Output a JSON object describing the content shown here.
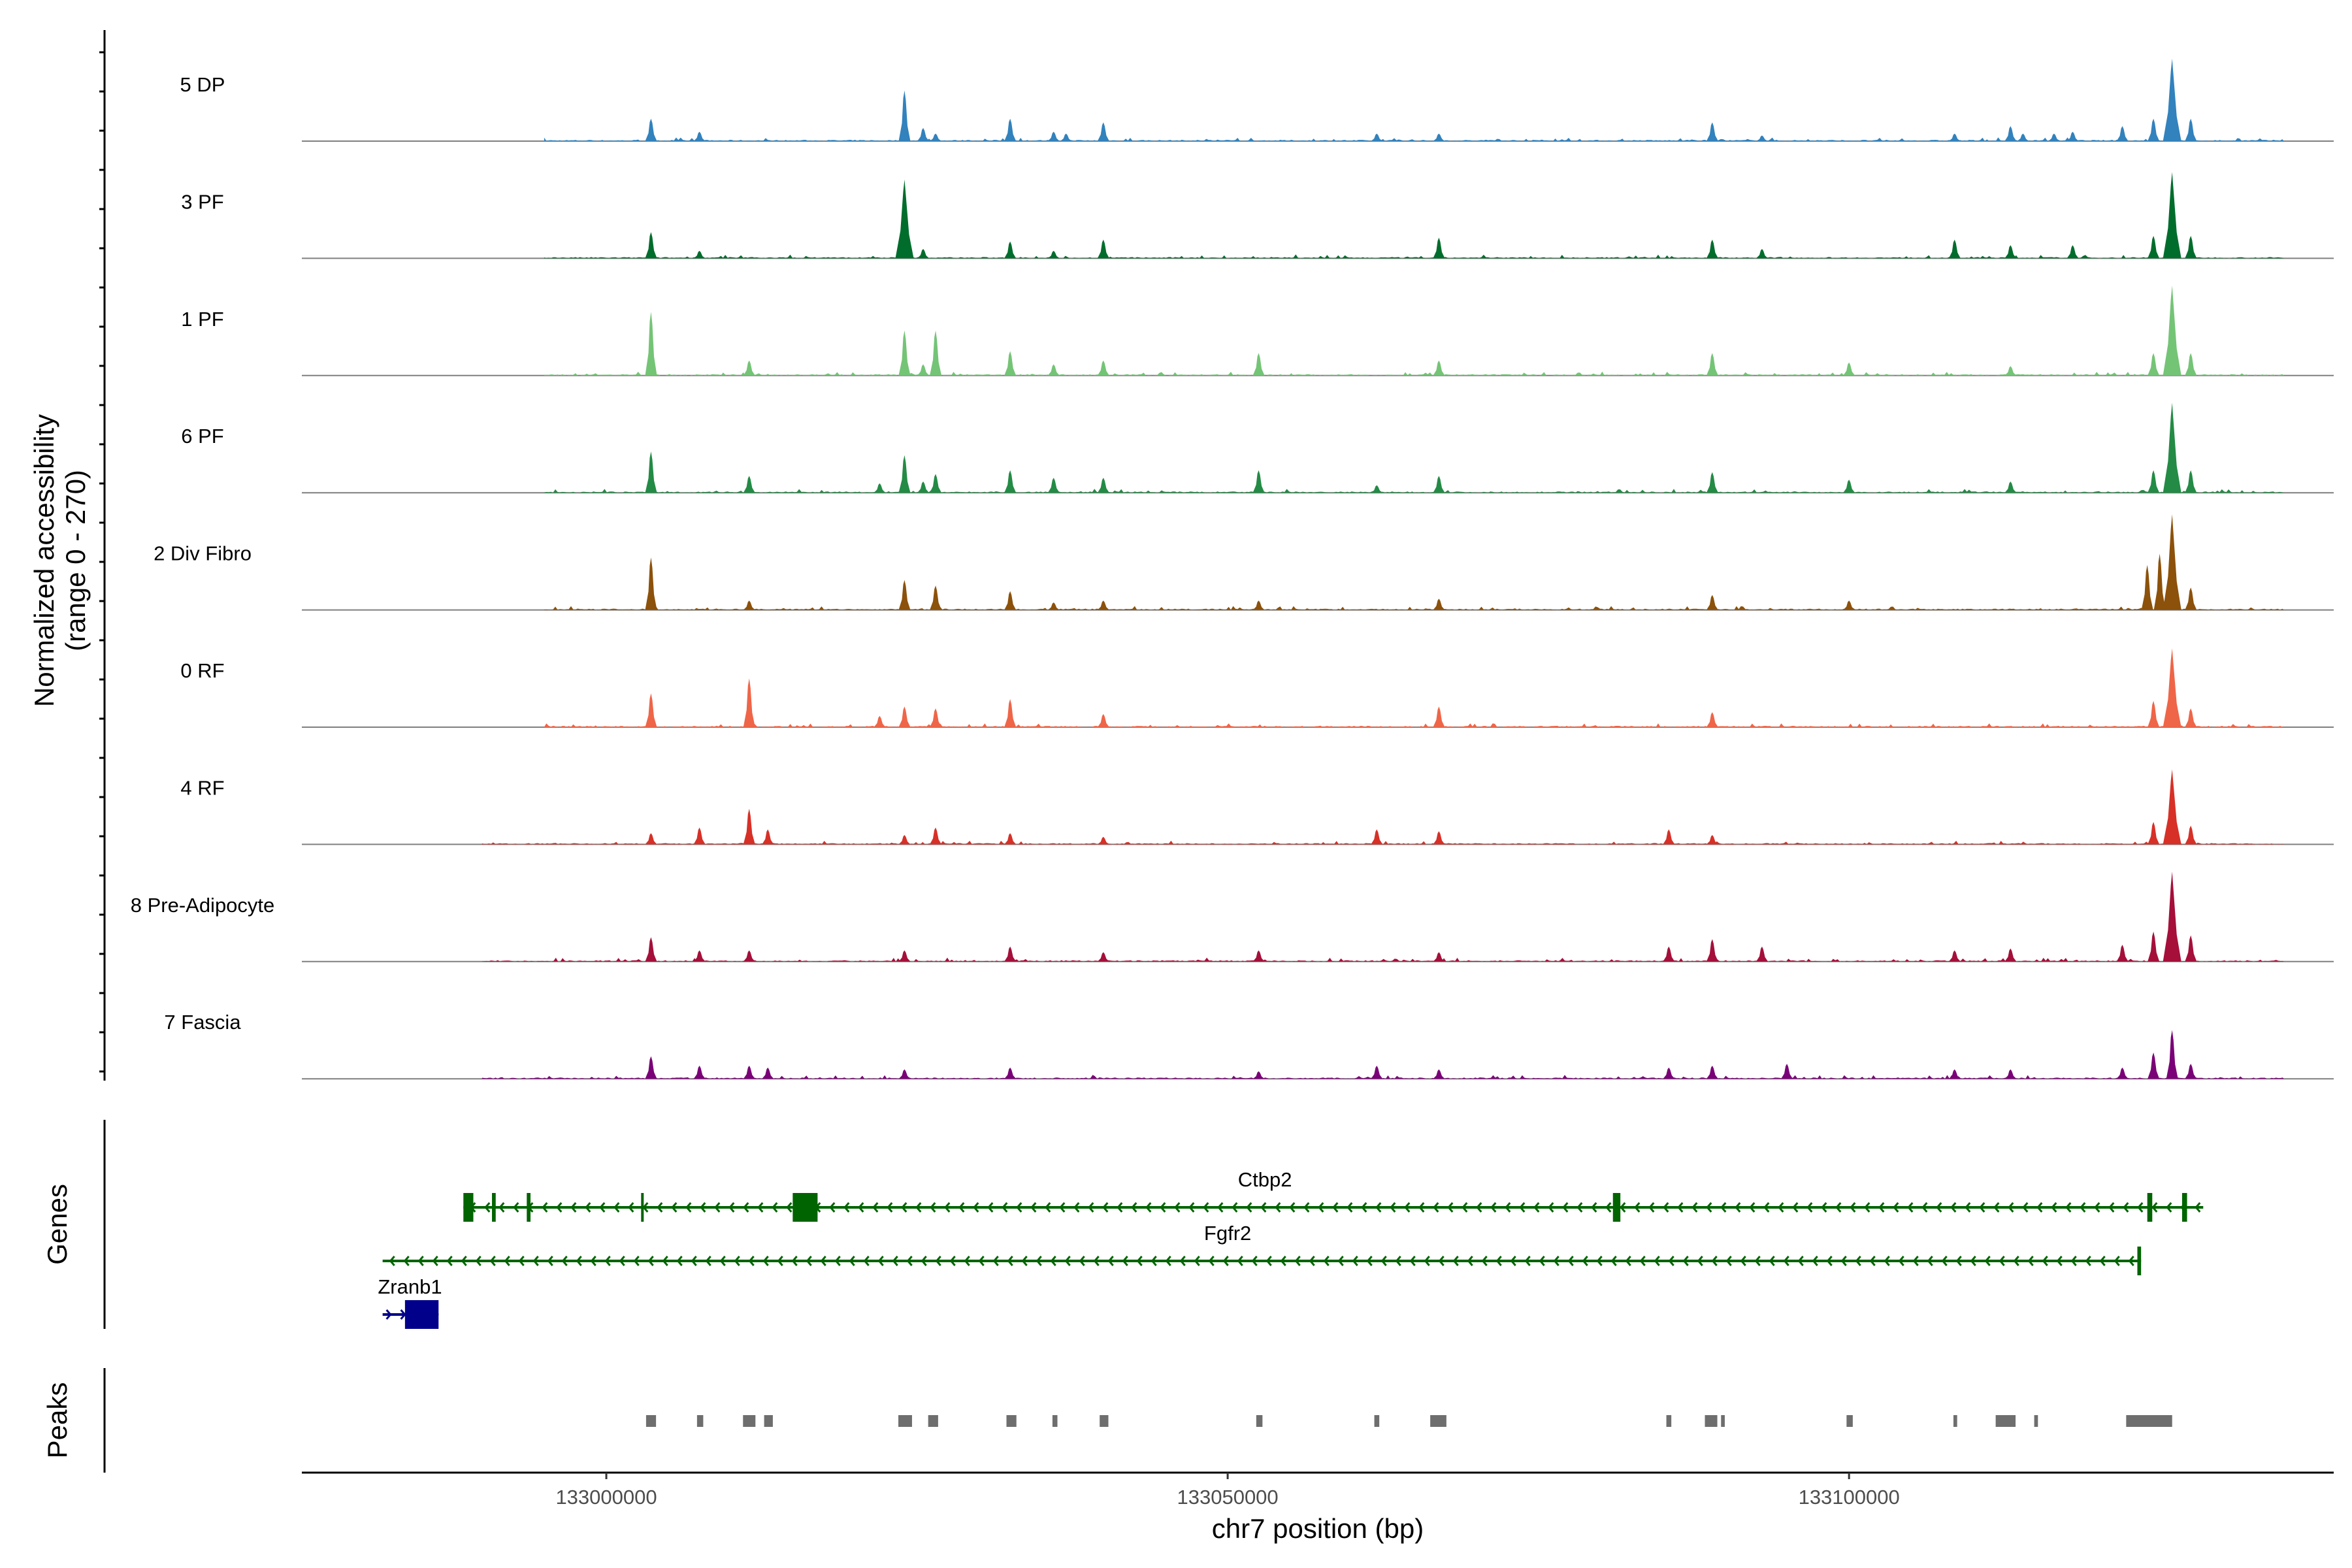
{
  "chart_data": {
    "type": "coverage",
    "y_axis_title_line1": "Normalized accessibility",
    "y_axis_title_line2": "(range 0 - 270)",
    "y_range": [
      0,
      270
    ],
    "x_axis_title": "chr7 position (bp)",
    "x_range": [
      132975500,
      133139000
    ],
    "x_ticks": [
      133000000,
      133050000,
      133100000
    ],
    "x_tick_labels": [
      "133000000",
      "133050000",
      "133100000"
    ],
    "tracks": [
      {
        "name": "5 DP",
        "color": "#3182bd",
        "peaks": [
          [
            133003600,
            60
          ],
          [
            133007500,
            25
          ],
          [
            133024000,
            135
          ],
          [
            133025500,
            35
          ],
          [
            133026500,
            20
          ],
          [
            133032500,
            60
          ],
          [
            133036000,
            25
          ],
          [
            133037000,
            20
          ],
          [
            133040000,
            50
          ],
          [
            133062000,
            20
          ],
          [
            133067000,
            20
          ],
          [
            133089000,
            50
          ],
          [
            133093000,
            15
          ],
          [
            133108500,
            20
          ],
          [
            133113000,
            40
          ],
          [
            133114000,
            20
          ],
          [
            133116500,
            20
          ],
          [
            133118000,
            25
          ],
          [
            133122000,
            40
          ],
          [
            133124500,
            60
          ],
          [
            133126000,
            220
          ],
          [
            133127500,
            60
          ]
        ]
      },
      {
        "name": "3 PF",
        "color": "#006d2c",
        "peaks": [
          [
            133003600,
            70
          ],
          [
            133007500,
            20
          ],
          [
            133024000,
            210
          ],
          [
            133025500,
            25
          ],
          [
            133032500,
            45
          ],
          [
            133036000,
            20
          ],
          [
            133040000,
            50
          ],
          [
            133067000,
            55
          ],
          [
            133089000,
            50
          ],
          [
            133093000,
            25
          ],
          [
            133108500,
            50
          ],
          [
            133113000,
            35
          ],
          [
            133118000,
            35
          ],
          [
            133124500,
            60
          ],
          [
            133126000,
            230
          ],
          [
            133127500,
            60
          ]
        ]
      },
      {
        "name": "1 PF",
        "color": "#74c476",
        "peaks": [
          [
            133003600,
            170
          ],
          [
            133011500,
            40
          ],
          [
            133024000,
            120
          ],
          [
            133025500,
            30
          ],
          [
            133026500,
            120
          ],
          [
            133032500,
            65
          ],
          [
            133036000,
            30
          ],
          [
            133040000,
            40
          ],
          [
            133052500,
            60
          ],
          [
            133067000,
            40
          ],
          [
            133089000,
            60
          ],
          [
            133100000,
            35
          ],
          [
            133113000,
            25
          ],
          [
            133124500,
            60
          ],
          [
            133126000,
            240
          ],
          [
            133127500,
            60
          ]
        ]
      },
      {
        "name": "6 PF",
        "color": "#238b45",
        "peaks": [
          [
            133003600,
            110
          ],
          [
            133011500,
            45
          ],
          [
            133022000,
            25
          ],
          [
            133024000,
            100
          ],
          [
            133025500,
            30
          ],
          [
            133026500,
            50
          ],
          [
            133032500,
            60
          ],
          [
            133036000,
            40
          ],
          [
            133040000,
            40
          ],
          [
            133052500,
            60
          ],
          [
            133062000,
            20
          ],
          [
            133067000,
            45
          ],
          [
            133089000,
            55
          ],
          [
            133100000,
            35
          ],
          [
            133113000,
            30
          ],
          [
            133124500,
            60
          ],
          [
            133126000,
            240
          ],
          [
            133127500,
            60
          ]
        ]
      },
      {
        "name": "2 Div Fibro",
        "color": "#8c510a",
        "peaks": [
          [
            133003600,
            140
          ],
          [
            133011500,
            25
          ],
          [
            133024000,
            80
          ],
          [
            133026500,
            65
          ],
          [
            133032500,
            50
          ],
          [
            133036000,
            20
          ],
          [
            133040000,
            25
          ],
          [
            133052500,
            25
          ],
          [
            133067000,
            30
          ],
          [
            133089000,
            40
          ],
          [
            133100000,
            25
          ],
          [
            133124000,
            120
          ],
          [
            133125000,
            150
          ],
          [
            133126000,
            255
          ],
          [
            133127500,
            60
          ]
        ]
      },
      {
        "name": "0 RF",
        "color": "#ef6548",
        "peaks": [
          [
            133003600,
            90
          ],
          [
            133011500,
            130
          ],
          [
            133022000,
            30
          ],
          [
            133024000,
            55
          ],
          [
            133026500,
            50
          ],
          [
            133032500,
            75
          ],
          [
            133040000,
            35
          ],
          [
            133067000,
            55
          ],
          [
            133089000,
            40
          ],
          [
            133124500,
            70
          ],
          [
            133126000,
            210
          ],
          [
            133127500,
            50
          ]
        ]
      },
      {
        "name": "4 RF",
        "color": "#d73027",
        "peaks": [
          [
            133003600,
            30
          ],
          [
            133007500,
            45
          ],
          [
            133011500,
            95
          ],
          [
            133013000,
            40
          ],
          [
            133024000,
            25
          ],
          [
            133026500,
            45
          ],
          [
            133032500,
            30
          ],
          [
            133040000,
            20
          ],
          [
            133062000,
            40
          ],
          [
            133067000,
            35
          ],
          [
            133085500,
            40
          ],
          [
            133089000,
            25
          ],
          [
            133124500,
            60
          ],
          [
            133126000,
            200
          ],
          [
            133127500,
            50
          ]
        ]
      },
      {
        "name": "8 Pre-Adipocyte",
        "color": "#a50f3a",
        "peaks": [
          [
            133003600,
            65
          ],
          [
            133007500,
            30
          ],
          [
            133011500,
            30
          ],
          [
            133024000,
            30
          ],
          [
            133032500,
            40
          ],
          [
            133040000,
            25
          ],
          [
            133052500,
            30
          ],
          [
            133067000,
            25
          ],
          [
            133085500,
            40
          ],
          [
            133089000,
            60
          ],
          [
            133093000,
            40
          ],
          [
            133108500,
            30
          ],
          [
            133113000,
            35
          ],
          [
            133122000,
            45
          ],
          [
            133124500,
            80
          ],
          [
            133126000,
            240
          ],
          [
            133127500,
            70
          ]
        ]
      },
      {
        "name": "7 Fascia",
        "color": "#7a0177",
        "peaks": [
          [
            133003600,
            60
          ],
          [
            133007500,
            35
          ],
          [
            133011500,
            35
          ],
          [
            133013000,
            30
          ],
          [
            133024000,
            25
          ],
          [
            133032500,
            30
          ],
          [
            133052500,
            20
          ],
          [
            133062000,
            35
          ],
          [
            133067000,
            25
          ],
          [
            133085500,
            30
          ],
          [
            133089000,
            35
          ],
          [
            133095000,
            40
          ],
          [
            133108500,
            25
          ],
          [
            133113000,
            25
          ],
          [
            133122000,
            30
          ],
          [
            133124500,
            70
          ],
          [
            133126000,
            130
          ],
          [
            133127500,
            40
          ]
        ]
      }
    ],
    "genes_panel_label": "Genes",
    "genes": [
      {
        "name": "Ctbp2",
        "color": "#006400",
        "strand": "-",
        "start": 132988500,
        "end": 133128500,
        "label_pos": 133053000,
        "exons": [
          [
            132988500,
            132989300
          ],
          [
            132990800,
            132991100
          ],
          [
            132993600,
            132993900
          ],
          [
            133002800,
            133003000
          ],
          [
            133015000,
            133017000
          ],
          [
            133081000,
            133081600
          ],
          [
            133124000,
            133124400
          ],
          [
            133126800,
            133127200
          ]
        ]
      },
      {
        "name": "Fgfr2",
        "color": "#006400",
        "strand": "-",
        "start": 132982000,
        "end": 133123500,
        "label_pos": 133050000,
        "exons": [
          [
            133123200,
            133123500
          ]
        ]
      },
      {
        "name": "Zranb1",
        "color": "#00008b",
        "strand": "+",
        "start": 132982000,
        "end": 132986500,
        "label_pos": 132984200,
        "exons": [
          [
            132983800,
            132986500
          ]
        ]
      }
    ],
    "peaks_panel_label": "Peaks",
    "called_peaks": [
      [
        133003200,
        133004000
      ],
      [
        133007300,
        133007800
      ],
      [
        133011000,
        133012000
      ],
      [
        133012700,
        133013400
      ],
      [
        133023500,
        133024600
      ],
      [
        133025900,
        133026700
      ],
      [
        133032200,
        133033000
      ],
      [
        133035900,
        133036300
      ],
      [
        133039700,
        133040400
      ],
      [
        133052300,
        133052800
      ],
      [
        133061800,
        133062200
      ],
      [
        133066300,
        133067600
      ],
      [
        133085300,
        133085700
      ],
      [
        133088400,
        133089400
      ],
      [
        133089700,
        133090000
      ],
      [
        133099800,
        133100300
      ],
      [
        133108400,
        133108700
      ],
      [
        133111800,
        133113400
      ],
      [
        133114900,
        133115200
      ],
      [
        133122300,
        133126000
      ]
    ]
  }
}
